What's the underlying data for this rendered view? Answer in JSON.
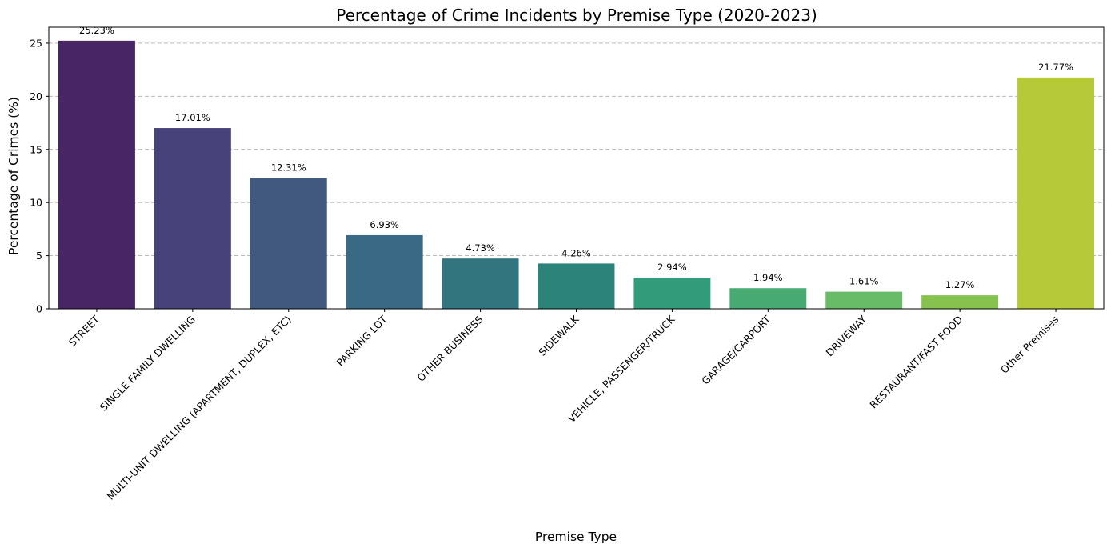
{
  "chart_data": {
    "type": "bar",
    "title": "Percentage of Crime Incidents by Premise Type (2020-2023)",
    "xlabel": "Premise Type",
    "ylabel": "Percentage of Crimes (%)",
    "categories": [
      "STREET",
      "SINGLE FAMILY DWELLING",
      "MULTI-UNIT DWELLING (APARTMENT, DUPLEX, ETC)",
      "PARKING LOT",
      "OTHER BUSINESS",
      "SIDEWALK",
      "VEHICLE, PASSENGER/TRUCK",
      "GARAGE/CARPORT",
      "DRIVEWAY",
      "RESTAURANT/FAST FOOD",
      "Other Premises"
    ],
    "values": [
      25.23,
      17.01,
      12.31,
      6.93,
      4.73,
      4.26,
      2.94,
      1.94,
      1.61,
      1.27,
      21.77
    ],
    "data_labels": [
      "25.23%",
      "17.01%",
      "12.31%",
      "6.93%",
      "4.73%",
      "4.26%",
      "2.94%",
      "1.94%",
      "1.61%",
      "1.27%",
      "21.77%"
    ],
    "colors": [
      "#482666",
      "#48427b",
      "#41597f",
      "#3a6986",
      "#32757f",
      "#2c8379",
      "#329b7a",
      "#46aa72",
      "#68bb67",
      "#87c24f",
      "#b5c939"
    ],
    "ylim": [
      0,
      26.5
    ],
    "yticks": [
      0,
      5,
      10,
      15,
      20,
      25
    ],
    "grid": "horizontal-dashed"
  }
}
